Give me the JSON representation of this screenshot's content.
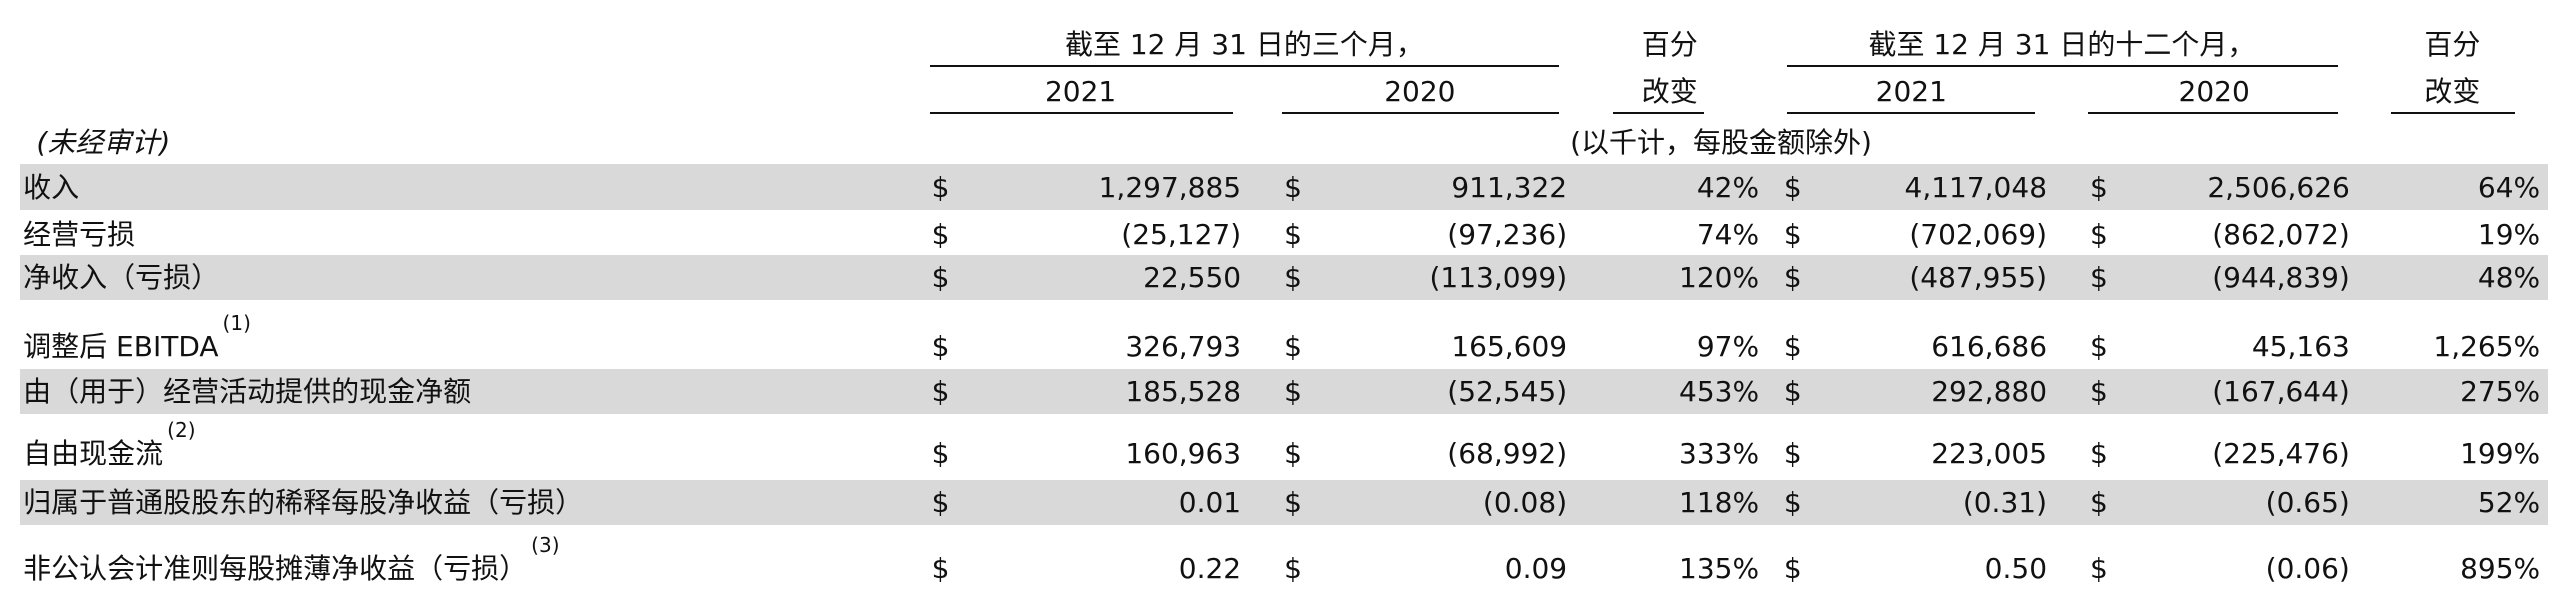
{
  "header": {
    "three_months": "截至 12 月 31 日的三个月，",
    "twelve_months": "截至 12 月 31 日的十二个月，",
    "year_a": "2021",
    "year_b": "2020",
    "pct_1": "百分",
    "pct_2": "改变",
    "unaudited": "(未经审计)",
    "units": "(以千计，每股金额除外)"
  },
  "currency": "$",
  "rows": [
    {
      "label": "收入",
      "values": [
        "1,297,885",
        "911,322",
        "42%",
        "4,117,048",
        "2,506,626",
        "64%"
      ]
    },
    {
      "label": "经营亏损",
      "values": [
        "(25,127)",
        "(97,236)",
        "74%",
        "(702,069)",
        "(862,072)",
        "19%"
      ]
    },
    {
      "label": "净收入（亏损）",
      "values": [
        "22,550",
        "(113,099)",
        "120%",
        "(487,955)",
        "(944,839)",
        "48%"
      ]
    },
    {
      "label": "调整后 EBITDA",
      "note": "(1)",
      "values": [
        "326,793",
        "165,609",
        "97%",
        "616,686",
        "45,163",
        "1,265%"
      ]
    },
    {
      "label": "由（用于）经营活动提供的现金净额",
      "values": [
        "185,528",
        "(52,545)",
        "453%",
        "292,880",
        "(167,644)",
        "275%"
      ]
    },
    {
      "label": "自由现金流",
      "note": "(2)",
      "values": [
        "160,963",
        "(68,992)",
        "333%",
        "223,005",
        "(225,476)",
        "199%"
      ]
    },
    {
      "label": "归属于普通股股东的稀释每股净收益（亏损）",
      "values": [
        "0.01",
        "(0.08)",
        "118%",
        "(0.31)",
        "(0.65)",
        "52%"
      ]
    },
    {
      "label": "非公认会计准则每股摊薄净收益（亏损）",
      "note": "(3)",
      "values": [
        "0.22",
        "0.09",
        "135%",
        "0.50",
        "(0.06)",
        "895%"
      ]
    }
  ]
}
